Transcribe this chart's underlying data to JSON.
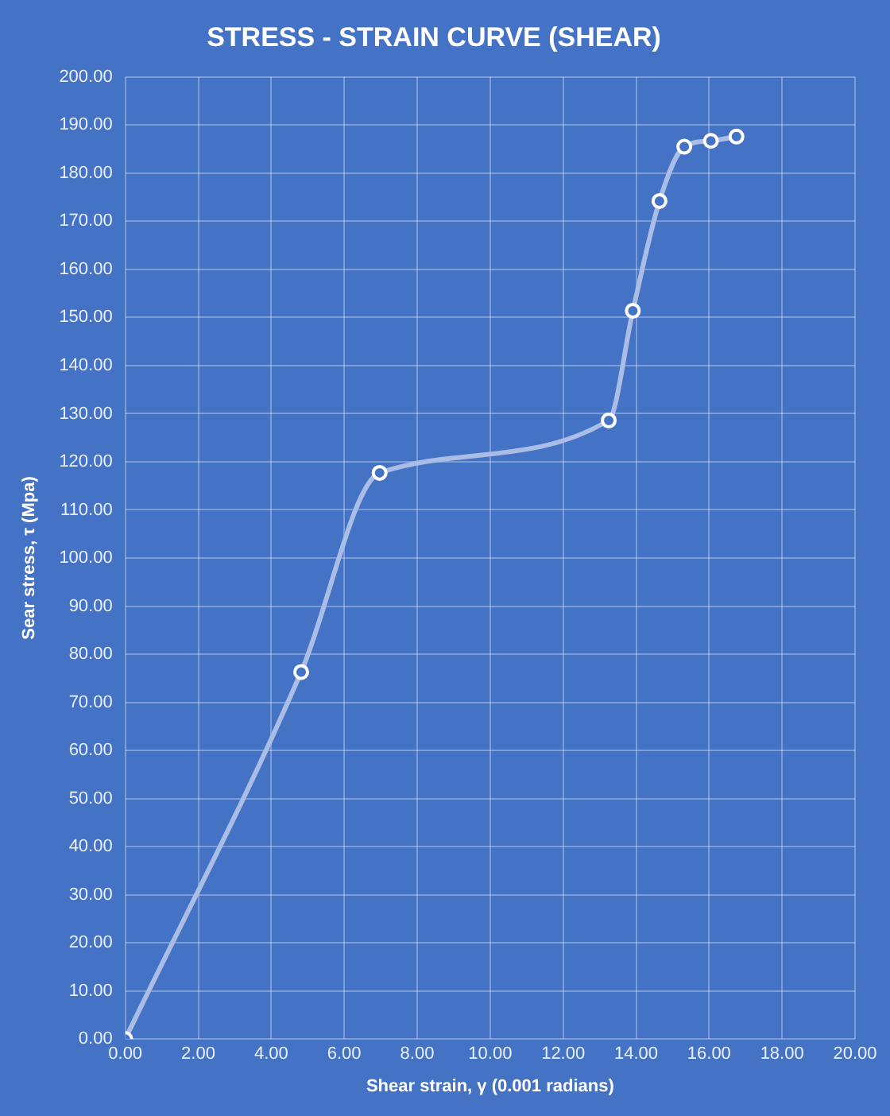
{
  "chart_data": {
    "type": "line",
    "title": "STRESS - STRAIN CURVE (SHEAR)",
    "xlabel": "Shear strain, γ (0.001 radians)",
    "ylabel": "Sear stress, τ (Mpa)",
    "x": [
      0,
      4.82,
      6.97,
      13.25,
      13.91,
      14.64,
      15.32,
      16.05,
      16.75
    ],
    "series": [
      {
        "color": "#a9bde6",
        "values": [
          0,
          76.3,
          117.7,
          128.6,
          151.4,
          174.2,
          185.5,
          186.7,
          187.6
        ]
      }
    ],
    "xlim": [
      0,
      20
    ],
    "xticks": [
      {
        "value": 0,
        "label": "0.00"
      },
      {
        "value": 2,
        "label": "2.00"
      },
      {
        "value": 4,
        "label": "4.00"
      },
      {
        "value": 6,
        "label": "6.00"
      },
      {
        "value": 8,
        "label": "8.00"
      },
      {
        "value": 10,
        "label": "10.00"
      },
      {
        "value": 12,
        "label": "12.00"
      },
      {
        "value": 14,
        "label": "14.00"
      },
      {
        "value": 16,
        "label": "16.00"
      },
      {
        "value": 18,
        "label": "18.00"
      },
      {
        "value": 20,
        "label": "20.00"
      }
    ],
    "ylim": [
      0,
      200
    ],
    "yticks": [
      {
        "value": 0,
        "label": "0.00"
      },
      {
        "value": 10,
        "label": "10.00"
      },
      {
        "value": 20,
        "label": "20.00"
      },
      {
        "value": 30,
        "label": "30.00"
      },
      {
        "value": 40,
        "label": "40.00"
      },
      {
        "value": 50,
        "label": "50.00"
      },
      {
        "value": 60,
        "label": "60.00"
      },
      {
        "value": 70,
        "label": "70.00"
      },
      {
        "value": 80,
        "label": "80.00"
      },
      {
        "value": 90,
        "label": "90.00"
      },
      {
        "value": 100,
        "label": "100.00"
      },
      {
        "value": 110,
        "label": "110.00"
      },
      {
        "value": 120,
        "label": "120.00"
      },
      {
        "value": 130,
        "label": "130.00"
      },
      {
        "value": 140,
        "label": "140.00"
      },
      {
        "value": 150,
        "label": "150.00"
      },
      {
        "value": 160,
        "label": "160.00"
      },
      {
        "value": 170,
        "label": "170.00"
      },
      {
        "value": 180,
        "label": "180.00"
      },
      {
        "value": 190,
        "label": "190.00"
      },
      {
        "value": 200,
        "label": "200.00"
      }
    ],
    "grid": true,
    "legend": false,
    "marker": "circle",
    "line_style": "solid"
  }
}
